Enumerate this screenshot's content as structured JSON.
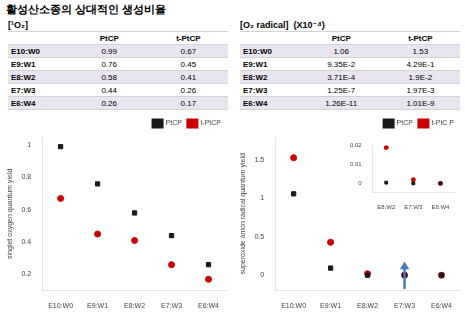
{
  "chart_data": [
    {
      "type": "scatter",
      "title": "활성산소종의 상대적인 생성비율",
      "table": {
        "title": "[¹O₂]",
        "color": "#e8e4f0",
        "columns": [
          "PtCP",
          "t-PtCP"
        ],
        "rows": [
          {
            "label": "E10:W0",
            "cells": [
              "0.99",
              "0.67"
            ]
          },
          {
            "label": "E9:W1",
            "cells": [
              "0.76",
              "0.45"
            ]
          },
          {
            "label": "E8:W2",
            "cells": [
              "0.58",
              "0.41"
            ]
          },
          {
            "label": "E7:W3",
            "cells": [
              "0.44",
              "0.26"
            ]
          },
          {
            "label": "E6:W4",
            "cells": [
              "0.26",
              "0.17"
            ]
          }
        ]
      },
      "categories": [
        "E10:W0",
        "E9:W1",
        "E8:W2",
        "E7:W3",
        "E6:W4"
      ],
      "ylabel": "singlet oxygen quantum yield",
      "series": [
        {
          "name": "PtCP",
          "color": "#1a1a1a",
          "marker": "square",
          "values": [
            0.99,
            0.76,
            0.58,
            0.44,
            0.26
          ]
        },
        {
          "name": "t-PtCP",
          "color": "#cc0000",
          "marker": "circle",
          "values": [
            0.67,
            0.45,
            0.41,
            0.26,
            0.17
          ]
        }
      ],
      "ylim": [
        0.1,
        1.05
      ],
      "yticks": [
        0.2,
        0.4,
        0.6,
        0.8,
        1
      ],
      "grid": false,
      "legend": "upper right"
    },
    {
      "type": "scatter",
      "table": {
        "title": "[O₂ radical]  (X10⁻⁴)",
        "color": "#e8e4f0",
        "columns": [
          "PtCP",
          "t-PtCP"
        ],
        "rows": [
          {
            "label": "E10:W0",
            "cells": [
              "1.06",
              "1.53"
            ]
          },
          {
            "label": "E9:W1",
            "cells": [
              "9.35E-2",
              "4.29E-1"
            ]
          },
          {
            "label": "E8:W2",
            "cells": [
              "3.71E-4",
              "1.9E-2"
            ]
          },
          {
            "label": "E7:W3",
            "cells": [
              "1.25E-7",
              "1.97E-3"
            ]
          },
          {
            "label": "E6:W4",
            "cells": [
              "1.26E-11",
              "1.01E-9"
            ]
          }
        ]
      },
      "categories": [
        "E10:W0",
        "E9:W1",
        "E8:W2",
        "E7:W3",
        "E6:W4"
      ],
      "ylabel": "superoxide anion radical quantum yield",
      "series": [
        {
          "name": "PtCP",
          "color": "#1a1a1a",
          "marker": "square",
          "values": [
            1.06,
            0.0935,
            0.000371,
            1.25e-07,
            1.26e-11
          ]
        },
        {
          "name": "t-PtC P",
          "color": "#cc0000",
          "marker": "circle",
          "values": [
            1.53,
            0.429,
            0.019,
            0.00197,
            1.01e-09
          ]
        }
      ],
      "ylim": [
        -0.2,
        1.8
      ],
      "yticks": [
        0,
        0.5,
        1,
        1.5
      ],
      "grid": false,
      "legend": "upper right",
      "arrows": [
        {
          "x": "E7:W3",
          "from": -0.18,
          "to": 0.18,
          "color": "#4a7ab5"
        }
      ]
    },
    {
      "type": "scatter",
      "categories": [
        "E8:W2",
        "E7:W3",
        "E6:W4"
      ],
      "series": [
        {
          "color": "#1a1a1a",
          "marker": "square",
          "values": [
            0.000371,
            1.25e-07,
            1.26e-11
          ]
        },
        {
          "color": "#cc0000",
          "marker": "circle",
          "values": [
            0.019,
            0.00197,
            1.01e-09
          ]
        }
      ],
      "ylim": [
        -0.005,
        0.02
      ],
      "yticks": [
        0,
        0.01,
        0.02
      ],
      "grid": false
    }
  ]
}
